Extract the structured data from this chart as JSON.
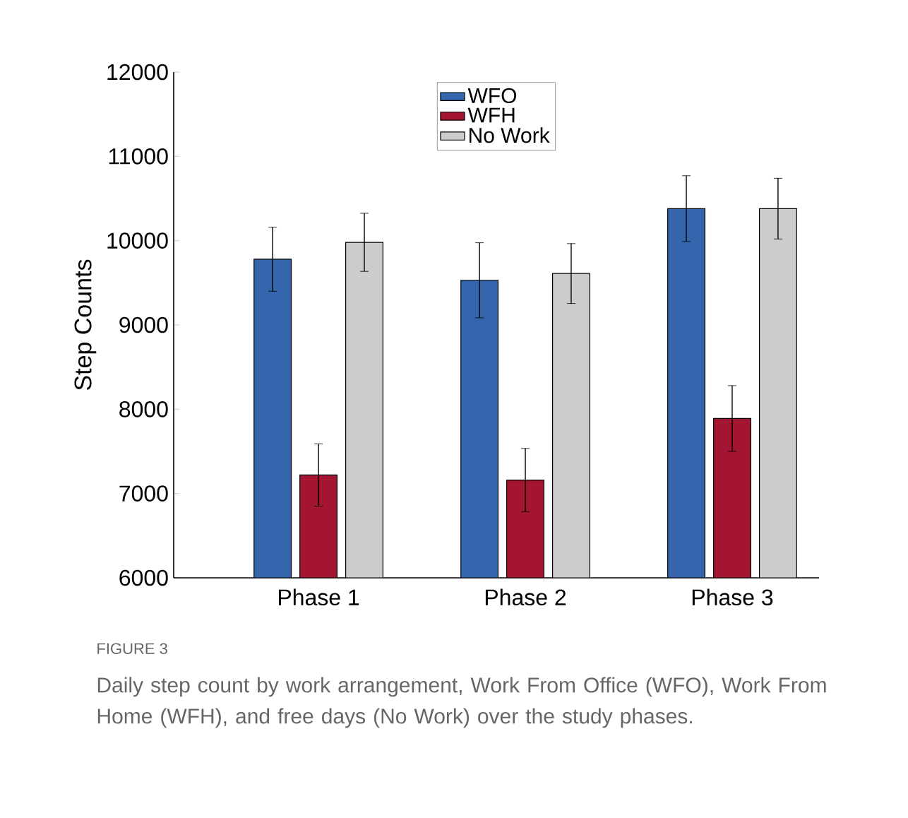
{
  "chart_data": {
    "type": "bar",
    "ylabel": "Step Counts",
    "categories": [
      "Phase 1",
      "Phase 2",
      "Phase 3"
    ],
    "series": [
      {
        "name": "WFO",
        "color": "#3565ad",
        "values": [
          9780,
          9530,
          10380
        ],
        "errors": [
          380,
          445,
          390
        ]
      },
      {
        "name": "WFH",
        "color": "#a31530",
        "values": [
          7220,
          7160,
          7890
        ],
        "errors": [
          370,
          375,
          390
        ]
      },
      {
        "name": "No Work",
        "color": "#cccccc",
        "values": [
          9980,
          9610,
          10380
        ],
        "errors": [
          345,
          355,
          360
        ]
      }
    ],
    "ylim": [
      6000,
      12000
    ],
    "yticks": [
      6000,
      7000,
      8000,
      9000,
      10000,
      11000,
      12000
    ],
    "legend": "top",
    "annotations": [
      "FIGURE 3",
      "Daily step count by work arrangement, Work From Office (WFO), Work From Home (WFH), and free days (No Work) over the study phases."
    ]
  }
}
